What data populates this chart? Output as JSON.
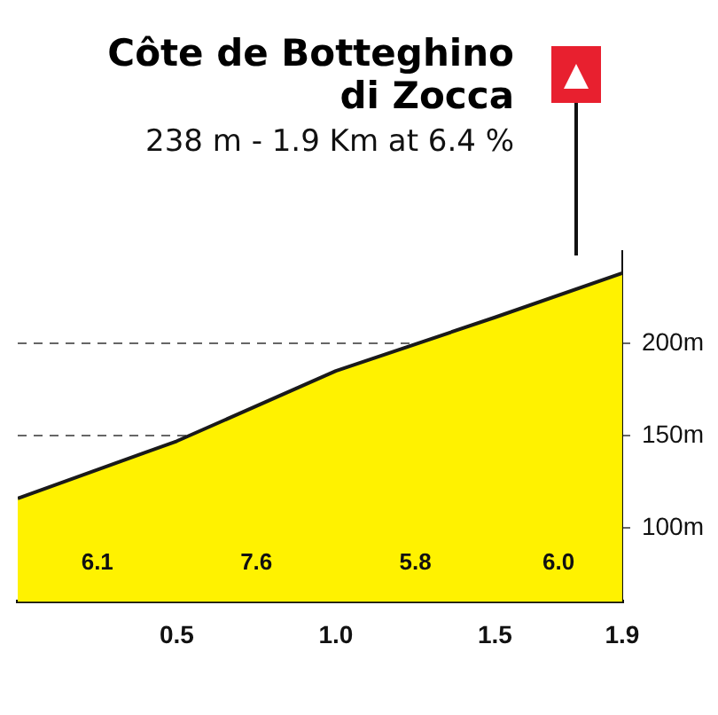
{
  "chart_data": {
    "type": "area",
    "title": "Côte de Botteghino\ndi Zocca",
    "subtitle": "238 m - 1.9 Km at 6.4 %",
    "x": [
      0,
      0.5,
      1.0,
      1.5,
      1.9
    ],
    "series": [
      {
        "color": "#fff200",
        "values": [
          116,
          147,
          185,
          214,
          238
        ]
      }
    ],
    "xlim": [
      0,
      1.9
    ],
    "xticks": [
      0.5,
      {
        "value": 1.0,
        "label": "1.0"
      },
      1.5,
      1.9
    ],
    "ylim": [
      60,
      250
    ],
    "yticks": [
      {
        "value": 100,
        "label": "100m"
      },
      {
        "value": 150,
        "label": "150m"
      },
      {
        "value": 200,
        "label": "200m"
      }
    ],
    "annotations": [
      "6.1",
      "7.6",
      "5.8",
      "6.0"
    ],
    "grid": "y"
  }
}
